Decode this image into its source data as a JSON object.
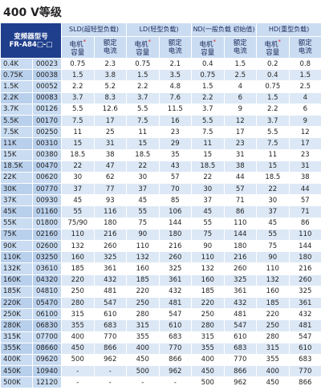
{
  "title": "400 V等级",
  "table": {
    "model_header": [
      "变频器型号",
      "FR-A84□-□"
    ],
    "groups": [
      "SLD(超轻型负载)",
      "LD(轻型负载)",
      "ND(一般负载 初始值)",
      "HD(重型负载)"
    ],
    "motor_header": [
      "电机",
      "容量"
    ],
    "note_mark": "*",
    "current_header": [
      "额定",
      "电流"
    ],
    "rows": [
      [
        "0.4K",
        "00023",
        "0.75",
        "2.3",
        "0.75",
        "2.1",
        "0.4",
        "1.5",
        "0.2",
        "0.8"
      ],
      [
        "0.75K",
        "00038",
        "1.5",
        "3.8",
        "1.5",
        "3.5",
        "0.75",
        "2.5",
        "0.4",
        "1.5"
      ],
      [
        "1.5K",
        "00052",
        "2.2",
        "5.2",
        "2.2",
        "4.8",
        "1.5",
        "4",
        "0.75",
        "2.5"
      ],
      [
        "2.2K",
        "00083",
        "3.7",
        "8.3",
        "3.7",
        "7.6",
        "2.2",
        "6",
        "1.5",
        "4"
      ],
      [
        "3.7K",
        "00126",
        "5.5",
        "12.6",
        "5.5",
        "11.5",
        "3.7",
        "9",
        "2.2",
        "6"
      ],
      [
        "5.5K",
        "00170",
        "7.5",
        "17",
        "7.5",
        "16",
        "5.5",
        "12",
        "3.7",
        "9"
      ],
      [
        "7.5K",
        "00250",
        "11",
        "25",
        "11",
        "23",
        "7.5",
        "17",
        "5.5",
        "12"
      ],
      [
        "11K",
        "00310",
        "15",
        "31",
        "15",
        "29",
        "11",
        "23",
        "7.5",
        "17"
      ],
      [
        "15K",
        "00380",
        "18.5",
        "38",
        "18.5",
        "35",
        "15",
        "31",
        "11",
        "23"
      ],
      [
        "18.5K",
        "00470",
        "22",
        "47",
        "22",
        "43",
        "18.5",
        "38",
        "15",
        "31"
      ],
      [
        "22K",
        "00620",
        "30",
        "62",
        "30",
        "57",
        "22",
        "44",
        "18.5",
        "38"
      ],
      [
        "30K",
        "00770",
        "37",
        "77",
        "37",
        "70",
        "30",
        "57",
        "22",
        "44"
      ],
      [
        "37K",
        "00930",
        "45",
        "93",
        "45",
        "85",
        "37",
        "71",
        "30",
        "57"
      ],
      [
        "45K",
        "01160",
        "55",
        "116",
        "55",
        "106",
        "45",
        "86",
        "37",
        "71"
      ],
      [
        "55K",
        "01800",
        "75/90",
        "180",
        "75",
        "144",
        "55",
        "110",
        "45",
        "86"
      ],
      [
        "75K",
        "02160",
        "110",
        "216",
        "90",
        "180",
        "75",
        "144",
        "55",
        "110"
      ],
      [
        "90K",
        "02600",
        "132",
        "260",
        "110",
        "216",
        "90",
        "180",
        "75",
        "144"
      ],
      [
        "110K",
        "03250",
        "160",
        "325",
        "132",
        "260",
        "110",
        "216",
        "90",
        "180"
      ],
      [
        "132K",
        "03610",
        "185",
        "361",
        "160",
        "325",
        "132",
        "260",
        "110",
        "216"
      ],
      [
        "160K",
        "04320",
        "220",
        "432",
        "185",
        "361",
        "160",
        "325",
        "132",
        "260"
      ],
      [
        "185K",
        "04810",
        "250",
        "481",
        "220",
        "432",
        "185",
        "361",
        "160",
        "325"
      ],
      [
        "220K",
        "05470",
        "280",
        "547",
        "250",
        "481",
        "220",
        "432",
        "185",
        "361"
      ],
      [
        "250K",
        "06100",
        "315",
        "610",
        "280",
        "547",
        "250",
        "481",
        "220",
        "432"
      ],
      [
        "280K",
        "06830",
        "355",
        "683",
        "315",
        "610",
        "280",
        "547",
        "250",
        "481"
      ],
      [
        "315K",
        "07700",
        "400",
        "770",
        "355",
        "683",
        "315",
        "610",
        "280",
        "547"
      ],
      [
        "355K",
        "08660",
        "450",
        "866",
        "400",
        "770",
        "355",
        "683",
        "315",
        "610"
      ],
      [
        "400K",
        "09620",
        "500",
        "962",
        "450",
        "866",
        "400",
        "770",
        "355",
        "683"
      ],
      [
        "450K",
        "10940",
        "-",
        "-",
        "500",
        "962",
        "450",
        "866",
        "400",
        "770"
      ],
      [
        "500K",
        "12120",
        "-",
        "-",
        "-",
        "-",
        "500",
        "962",
        "450",
        "866"
      ]
    ]
  }
}
